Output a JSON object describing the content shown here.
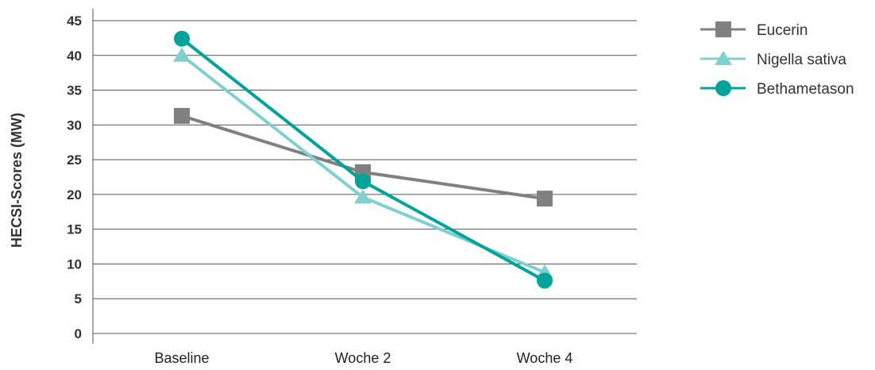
{
  "chart_data": {
    "type": "line",
    "ylabel": "HECSI-Scores (MW)",
    "xlabel": "",
    "title": "",
    "categories": [
      "Baseline",
      "Woche 2",
      "Woche 4"
    ],
    "yticks": [
      "0",
      "5",
      "10",
      "15",
      "20",
      "25",
      "30",
      "35",
      "40",
      "45"
    ],
    "ylim": [
      0,
      45
    ],
    "grid": true,
    "legend_position": "right",
    "series": [
      {
        "name": "Eucerin",
        "values": [
          31.3,
          23.2,
          19.4
        ],
        "color": "#808080",
        "marker": "square"
      },
      {
        "name": "Nigella sativa",
        "values": [
          40,
          19.6,
          8.8
        ],
        "color": "#7fd0cf",
        "marker": "triangle"
      },
      {
        "name": "Bethametason",
        "values": [
          42.4,
          21.9,
          7.6
        ],
        "color": "#00a49a",
        "marker": "circle"
      }
    ]
  }
}
